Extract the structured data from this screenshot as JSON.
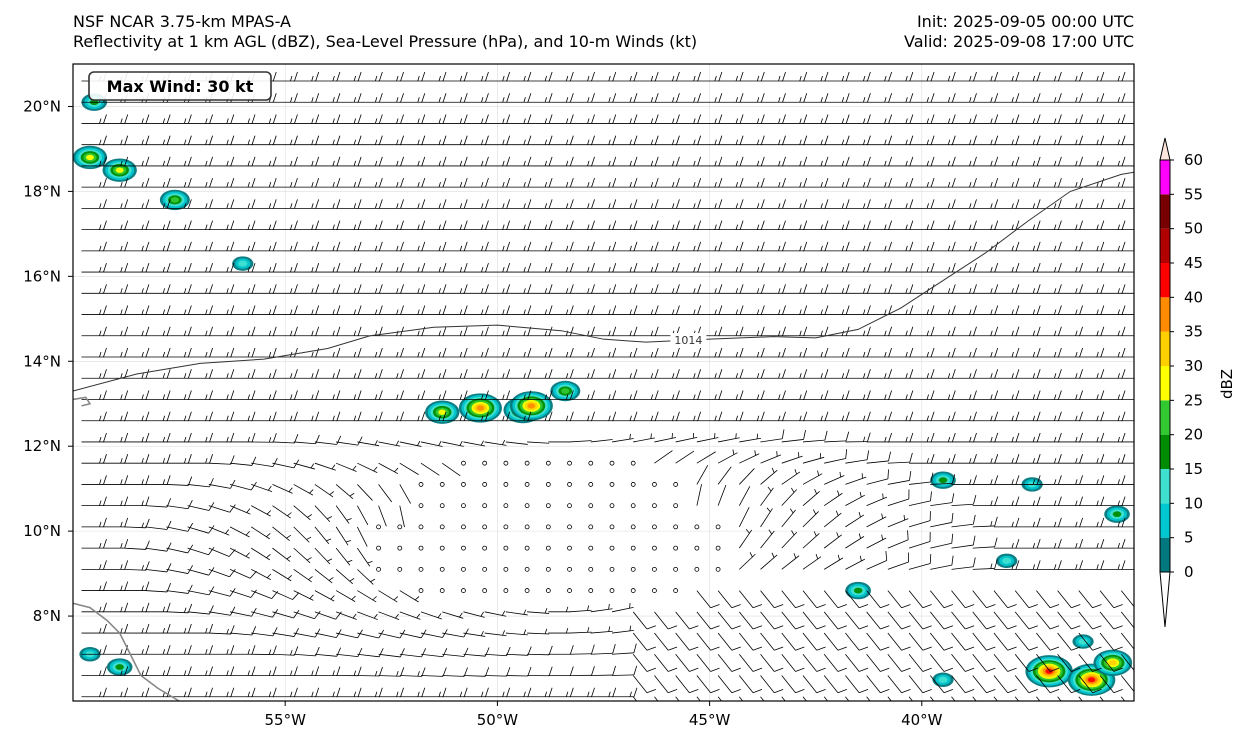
{
  "header": {
    "title_line1": "NSF NCAR 3.75-km MPAS-A",
    "title_line2": "Reflectivity at 1 km AGL (dBZ), Sea-Level Pressure (hPa), and 10-m Winds (kt)",
    "init": "Init: 2025-09-05 00:00 UTC",
    "valid": "Valid: 2025-09-08 17:00 UTC"
  },
  "map": {
    "lon_range": [
      -60,
      -35
    ],
    "lat_range": [
      6,
      21
    ],
    "lon_ticks": [
      {
        "value": -55,
        "label": "55°W"
      },
      {
        "value": -50,
        "label": "50°W"
      },
      {
        "value": -45,
        "label": "45°W"
      },
      {
        "value": -40,
        "label": "40°W"
      }
    ],
    "lat_ticks": [
      {
        "value": 20,
        "label": "20°N"
      },
      {
        "value": 18,
        "label": "18°N"
      },
      {
        "value": 16,
        "label": "16°N"
      },
      {
        "value": 14,
        "label": "14°N"
      },
      {
        "value": 12,
        "label": "12°N"
      },
      {
        "value": 10,
        "label": "10°N"
      },
      {
        "value": 8,
        "label": "8°N"
      }
    ],
    "max_wind_label": "Max Wind: 30 kt",
    "isobar": {
      "label": "1014",
      "label_pos": [
        -45.5,
        14.5
      ],
      "points": [
        [
          -60,
          13.3
        ],
        [
          -58.5,
          13.7
        ],
        [
          -57,
          13.95
        ],
        [
          -55.5,
          14.05
        ],
        [
          -54,
          14.3
        ],
        [
          -53,
          14.6
        ],
        [
          -51.5,
          14.8
        ],
        [
          -50,
          14.85
        ],
        [
          -48.5,
          14.72
        ],
        [
          -47.5,
          14.52
        ],
        [
          -46.5,
          14.45
        ],
        [
          -45,
          14.52
        ],
        [
          -43.5,
          14.58
        ],
        [
          -42.5,
          14.55
        ],
        [
          -41.5,
          14.75
        ],
        [
          -40.5,
          15.25
        ],
        [
          -39.5,
          15.9
        ],
        [
          -38.5,
          16.55
        ],
        [
          -37.5,
          17.3
        ],
        [
          -36.5,
          18.0
        ],
        [
          -35.3,
          18.4
        ],
        [
          -35,
          18.45
        ]
      ]
    },
    "coastline": [
      [
        [
          -60,
          8.3
        ],
        [
          -59.6,
          8.2
        ],
        [
          -59.2,
          7.9
        ],
        [
          -58.9,
          7.6
        ],
        [
          -58.6,
          7.0
        ],
        [
          -58.4,
          6.6
        ],
        [
          -58.0,
          6.3
        ],
        [
          -57.5,
          6.0
        ]
      ],
      [
        [
          -60,
          13.1
        ],
        [
          -59.7,
          13.15
        ],
        [
          -59.6,
          13.0
        ],
        [
          -59.8,
          12.95
        ]
      ]
    ],
    "storms": [
      {
        "lon": -50.4,
        "lat": 12.9,
        "intensity": 35
      },
      {
        "lon": -49.4,
        "lat": 12.85,
        "intensity": 30
      },
      {
        "lon": -49.2,
        "lat": 12.95,
        "intensity": 35
      },
      {
        "lon": -51.3,
        "lat": 12.8,
        "intensity": 25
      },
      {
        "lon": -48.4,
        "lat": 13.3,
        "intensity": 20
      },
      {
        "lon": -59.6,
        "lat": 18.8,
        "intensity": 25
      },
      {
        "lon": -58.9,
        "lat": 18.5,
        "intensity": 25
      },
      {
        "lon": -57.6,
        "lat": 17.8,
        "intensity": 20
      },
      {
        "lon": -59.5,
        "lat": 20.1,
        "intensity": 15
      },
      {
        "lon": -56,
        "lat": 16.3,
        "intensity": 10
      },
      {
        "lon": -37,
        "lat": 6.7,
        "intensity": 40
      },
      {
        "lon": -36,
        "lat": 6.5,
        "intensity": 40
      },
      {
        "lon": -35.5,
        "lat": 6.9,
        "intensity": 30
      },
      {
        "lon": -36.2,
        "lat": 7.4,
        "intensity": 10
      },
      {
        "lon": -41.5,
        "lat": 8.6,
        "intensity": 15
      },
      {
        "lon": -39.5,
        "lat": 11.2,
        "intensity": 15
      },
      {
        "lon": -37.4,
        "lat": 11.1,
        "intensity": 10
      },
      {
        "lon": -35.4,
        "lat": 10.4,
        "intensity": 15
      },
      {
        "lon": -38,
        "lat": 9.3,
        "intensity": 10
      },
      {
        "lon": -39.5,
        "lat": 6.5,
        "intensity": 10
      },
      {
        "lon": -58.9,
        "lat": 6.8,
        "intensity": 15
      },
      {
        "lon": -59.6,
        "lat": 7.1,
        "intensity": 10
      }
    ]
  },
  "colorbar": {
    "label": "dBZ",
    "levels": [
      0,
      5,
      10,
      15,
      20,
      25,
      30,
      35,
      40,
      45,
      50,
      55,
      60
    ],
    "colors": [
      "#00787d",
      "#00c8d0",
      "#40e0d0",
      "#008c00",
      "#32c832",
      "#ffff00",
      "#ffd000",
      "#ff8c00",
      "#ff0000",
      "#b00000",
      "#780000",
      "#ff00ff",
      "#ffe6dc"
    ]
  }
}
